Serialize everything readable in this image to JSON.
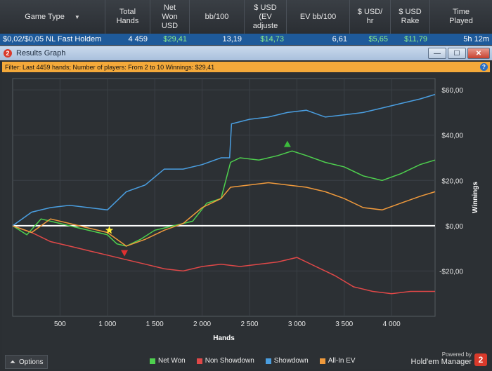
{
  "stats_table": {
    "headers": [
      "Game Type",
      "Total\nHands",
      "Net\nWon\nUSD",
      "bb/100",
      "$ USD\n(EV\nadjuste",
      "EV bb/100",
      "$ USD/\nhr",
      "$ USD\nRake",
      "Time\nPlayed"
    ],
    "row": [
      "$0,02/$0,05 NL Fast Holdem",
      "4 459",
      "$29,41",
      "13,19",
      "$14,73",
      "6,61",
      "$5,65",
      "$11,79",
      "5h 12m"
    ]
  },
  "window": {
    "title": "Results Graph",
    "icon_text": "2",
    "min_label": "—",
    "max_label": "☐",
    "close_label": "✕"
  },
  "filter": {
    "text": "Filter: Last 4459 hands; Number of players: From 2 to 10  Winnings: $29,41",
    "help_label": "?"
  },
  "options_label": "Options",
  "powered_by": {
    "line1": "Powered by",
    "brand": "Hold'em Manager",
    "badge": "2"
  },
  "chart_data": {
    "type": "line",
    "xlabel": "Hands",
    "ylabel": "Winnings",
    "xlim": [
      0,
      4459
    ],
    "ylim": [
      -40,
      65
    ],
    "x_ticks": [
      500,
      1000,
      1500,
      2000,
      2500,
      3000,
      3500,
      4000
    ],
    "x_tick_labels": [
      "500",
      "1 000",
      "1 500",
      "2 000",
      "2 500",
      "3 000",
      "3 500",
      "4 000"
    ],
    "y_ticks": [
      -20,
      0,
      20,
      40,
      60
    ],
    "y_tick_labels": [
      "-$20,00",
      "$0,00",
      "$20,00",
      "$40,00",
      "$60,00"
    ],
    "legend_position": "bottom",
    "markers": [
      {
        "type": "star",
        "x": 1020,
        "y": -2,
        "color": "#ffee33"
      },
      {
        "type": "down-triangle",
        "x": 1180,
        "y": -12,
        "color": "#e03030"
      },
      {
        "type": "up-triangle",
        "x": 2900,
        "y": 36,
        "color": "#3cba3c"
      }
    ],
    "series": [
      {
        "name": "Net Won",
        "color": "#4ed04e",
        "x": [
          0,
          150,
          300,
          500,
          700,
          900,
          1000,
          1100,
          1200,
          1350,
          1500,
          1700,
          1900,
          2050,
          2200,
          2300,
          2400,
          2600,
          2800,
          2950,
          3100,
          3300,
          3500,
          3700,
          3900,
          4100,
          4300,
          4459
        ],
        "y": [
          0,
          -4,
          3,
          1,
          -1,
          -3,
          -4,
          -8,
          -9,
          -6,
          -2,
          0,
          2,
          10,
          12,
          28,
          30,
          29,
          31,
          33,
          31,
          28,
          26,
          22,
          20,
          23,
          27,
          29
        ]
      },
      {
        "name": "Non Showdown",
        "color": "#e04848",
        "x": [
          0,
          200,
          400,
          600,
          800,
          1000,
          1200,
          1400,
          1600,
          1800,
          2000,
          2200,
          2400,
          2600,
          2800,
          3000,
          3200,
          3400,
          3600,
          3800,
          4000,
          4200,
          4459
        ],
        "y": [
          0,
          -3,
          -7,
          -9,
          -11,
          -13,
          -15,
          -17,
          -19,
          -20,
          -18,
          -17,
          -18,
          -17,
          -16,
          -14,
          -18,
          -22,
          -27,
          -29,
          -30,
          -29,
          -29
        ]
      },
      {
        "name": "Showdown",
        "color": "#4a9ee0",
        "x": [
          0,
          200,
          400,
          600,
          800,
          1000,
          1200,
          1400,
          1600,
          1800,
          2000,
          2200,
          2290,
          2310,
          2500,
          2700,
          2900,
          3100,
          3300,
          3500,
          3700,
          3900,
          4100,
          4300,
          4459
        ],
        "y": [
          0,
          6,
          8,
          9,
          8,
          7,
          15,
          18,
          25,
          25,
          27,
          30,
          30,
          45,
          47,
          48,
          50,
          51,
          48,
          49,
          50,
          52,
          54,
          56,
          58
        ]
      },
      {
        "name": "All-In EV",
        "color": "#f09a3c",
        "x": [
          0,
          200,
          400,
          600,
          800,
          1000,
          1200,
          1400,
          1600,
          1800,
          2000,
          2200,
          2300,
          2500,
          2700,
          2900,
          3100,
          3300,
          3500,
          3700,
          3900,
          4100,
          4300,
          4459
        ],
        "y": [
          0,
          -3,
          3,
          1,
          -1,
          -3,
          -9,
          -6,
          -2,
          1,
          8,
          12,
          17,
          18,
          19,
          18,
          17,
          15,
          12,
          8,
          7,
          10,
          13,
          15
        ]
      }
    ]
  }
}
